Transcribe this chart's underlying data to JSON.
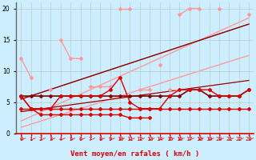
{
  "background_color": "#cceeff",
  "grid_color": "#bbcccc",
  "xlabel": "Vent moyen/en rafales ( km/h )",
  "xlabel_color": "#dd0000",
  "xlim": [
    -0.5,
    23.5
  ],
  "ylim": [
    0,
    21
  ],
  "yticks": [
    0,
    5,
    10,
    15,
    20
  ],
  "xticks": [
    0,
    1,
    2,
    3,
    4,
    5,
    6,
    7,
    8,
    9,
    10,
    11,
    12,
    13,
    14,
    15,
    16,
    17,
    18,
    19,
    20,
    21,
    22,
    23
  ],
  "pink": "#ff9999",
  "red": "#dd0000",
  "darkred": "#880000",
  "series_pink_jagged": [
    12,
    9,
    null,
    null,
    15,
    12,
    12,
    null,
    null,
    null,
    20,
    20,
    null,
    null,
    11,
    null,
    19,
    20,
    20,
    null,
    20,
    null,
    null,
    19
  ],
  "series_pink_mid": [
    null,
    null,
    null,
    7,
    null,
    null,
    null,
    7.5,
    7.5,
    7.5,
    null,
    null,
    7,
    7,
    null,
    7,
    7,
    7,
    null,
    7,
    null,
    null,
    null,
    null
  ],
  "trend_pink_upper": [
    2.0,
    18.5
  ],
  "trend_pink_lower": [
    1.0,
    12.5
  ],
  "trend_dark_upper": [
    5.5,
    17.5
  ],
  "trend_dark_lower": [
    3.5,
    8.5
  ],
  "series_dark_flat": [
    6,
    6,
    6,
    6,
    6,
    6,
    6,
    6,
    6,
    6,
    6,
    6,
    6,
    6,
    6,
    6,
    6,
    7,
    7,
    6,
    6,
    6,
    6,
    7
  ],
  "series_red_jagged": [
    6,
    4,
    4,
    4,
    6,
    6,
    6,
    6,
    6,
    7,
    9,
    5,
    4,
    4,
    4,
    6,
    7,
    7,
    7,
    7,
    6,
    6,
    6,
    7
  ],
  "series_red_flat": [
    4,
    4,
    4,
    4,
    4,
    4,
    4,
    4,
    4,
    4,
    4,
    4,
    4,
    4,
    4,
    4,
    4,
    4,
    4,
    4,
    4,
    4,
    4,
    4
  ],
  "series_red_desc": [
    6,
    4,
    3,
    3,
    3,
    3,
    3,
    3,
    3,
    3,
    3,
    2.5,
    2.5,
    2.5,
    null,
    null,
    null,
    null,
    null,
    null,
    null,
    null,
    null,
    null
  ]
}
